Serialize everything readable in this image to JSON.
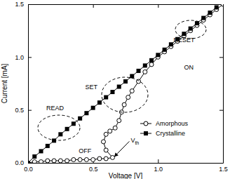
{
  "chart_data": {
    "type": "line",
    "x_label": "Voltage [V]",
    "y_label": "Current [mA]",
    "xlim": [
      0,
      1.5
    ],
    "ylim": [
      0,
      1.5
    ],
    "xticks": [
      {
        "value": 0,
        "label": "0.0"
      },
      {
        "value": 0.5,
        "label": "0.5"
      },
      {
        "value": 1,
        "label": "1.0"
      },
      {
        "value": 1.5,
        "label": "1.5"
      }
    ],
    "yticks": [
      {
        "value": 0,
        "label": "0.0"
      },
      {
        "value": 0.5,
        "label": "0.5"
      },
      {
        "value": 1,
        "label": "1.0"
      },
      {
        "value": 1.5,
        "label": "1.5"
      }
    ],
    "legend": "lower right",
    "series": [
      {
        "name": "Amorphous",
        "color": "#000000",
        "marker": "circle",
        "line_style": "solid",
        "x": [
          0,
          0.05,
          0.1,
          0.15,
          0.2,
          0.25,
          0.3,
          0.35,
          0.4,
          0.45,
          0.5,
          0.55,
          0.6,
          0.65,
          0.6,
          0.58,
          0.6,
          0.63,
          0.67,
          0.7,
          0.72,
          0.74,
          0.77,
          0.8,
          0.85,
          0.9,
          0.95,
          1.0,
          1.05,
          1.1,
          1.15,
          1.2,
          1.25,
          1.3,
          1.35,
          1.4,
          1.45,
          1.5
        ],
        "values": [
          0,
          0.01,
          0.01,
          0.02,
          0.02,
          0.02,
          0.02,
          0.03,
          0.03,
          0.03,
          0.03,
          0.04,
          0.04,
          0.05,
          0.12,
          0.2,
          0.27,
          0.3,
          0.33,
          0.4,
          0.48,
          0.55,
          0.62,
          0.68,
          0.77,
          0.86,
          0.93,
          1.0,
          1.05,
          1.1,
          1.15,
          1.2,
          1.25,
          1.3,
          1.35,
          1.4,
          1.45,
          1.5
        ]
      },
      {
        "name": "Crystalline",
        "color": "#000000",
        "marker": "square",
        "line_style": "solid",
        "x": [
          0,
          0.05,
          0.1,
          0.15,
          0.2,
          0.25,
          0.3,
          0.35,
          0.4,
          0.45,
          0.5,
          0.55,
          0.6,
          0.65,
          0.7,
          0.75,
          0.8,
          0.85,
          0.9,
          0.95,
          1.0,
          1.05,
          1.1,
          1.15,
          1.2,
          1.25,
          1.3,
          1.35,
          1.4,
          1.45
        ],
        "values": [
          0,
          0.06,
          0.11,
          0.16,
          0.21,
          0.27,
          0.32,
          0.37,
          0.42,
          0.47,
          0.52,
          0.57,
          0.62,
          0.67,
          0.72,
          0.77,
          0.82,
          0.87,
          0.92,
          0.97,
          1.02,
          1.07,
          1.12,
          1.17,
          1.22,
          1.27,
          1.32,
          1.37,
          1.42,
          1.47
        ]
      }
    ],
    "annotations": [
      {
        "text": "READ",
        "x": 0.14,
        "y": 0.5
      },
      {
        "text": "OFF",
        "x": 0.39,
        "y": 0.09
      },
      {
        "text": "SET",
        "x": 0.44,
        "y": 0.7
      },
      {
        "text": "ON",
        "x": 1.2,
        "y": 0.88
      },
      {
        "text": "RESET",
        "x": 1.12,
        "y": 1.14
      },
      {
        "text": "V",
        "sub": "th",
        "x": 0.79,
        "y": 0.19,
        "arrow": [
          0.665,
          0.06
        ]
      }
    ]
  }
}
